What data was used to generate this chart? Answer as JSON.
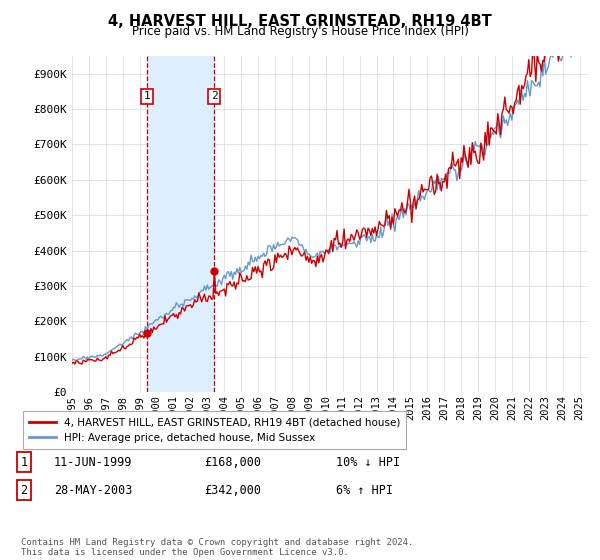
{
  "title": "4, HARVEST HILL, EAST GRINSTEAD, RH19 4BT",
  "subtitle": "Price paid vs. HM Land Registry's House Price Index (HPI)",
  "legend_line1": "4, HARVEST HILL, EAST GRINSTEAD, RH19 4BT (detached house)",
  "legend_line2": "HPI: Average price, detached house, Mid Sussex",
  "transaction1_label": "1",
  "transaction1_date": "11-JUN-1999",
  "transaction1_price": "£168,000",
  "transaction1_hpi": "10% ↓ HPI",
  "transaction2_label": "2",
  "transaction2_date": "28-MAY-2003",
  "transaction2_price": "£342,000",
  "transaction2_hpi": "6% ↑ HPI",
  "footnote": "Contains HM Land Registry data © Crown copyright and database right 2024.\nThis data is licensed under the Open Government Licence v3.0.",
  "hpi_color": "#6699cc",
  "price_color": "#cc0000",
  "shade_color": "#ddeeff",
  "vline_color": "#cc0000",
  "ylim": [
    0,
    950000
  ],
  "yticks": [
    0,
    100000,
    200000,
    300000,
    400000,
    500000,
    600000,
    700000,
    800000,
    900000
  ],
  "ytick_labels": [
    "£0",
    "£100K",
    "£200K",
    "£300K",
    "£400K",
    "£500K",
    "£600K",
    "£700K",
    "£800K",
    "£900K"
  ],
  "transaction1_year": 1999.44,
  "transaction1_value": 168000,
  "transaction2_year": 2003.4,
  "transaction2_value": 342000,
  "xlim_left": 1995.0,
  "xlim_right": 2025.5,
  "xtick_years": [
    1995,
    1996,
    1997,
    1998,
    1999,
    2000,
    2001,
    2002,
    2003,
    2004,
    2005,
    2006,
    2007,
    2008,
    2009,
    2010,
    2011,
    2012,
    2013,
    2014,
    2015,
    2016,
    2017,
    2018,
    2019,
    2020,
    2021,
    2022,
    2023,
    2024,
    2025
  ]
}
